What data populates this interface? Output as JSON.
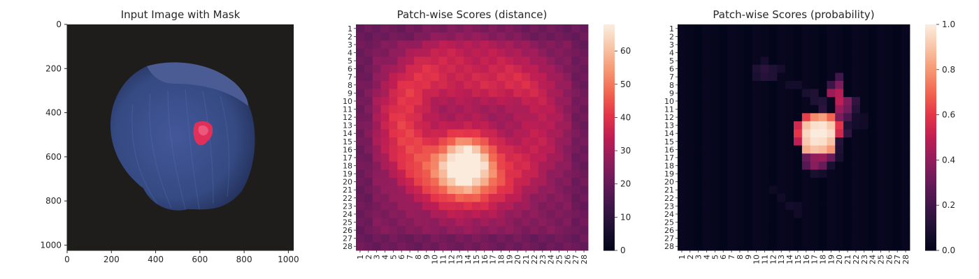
{
  "chart_data": [
    {
      "type": "image",
      "title": "Input Image with Mask",
      "xlim": [
        0,
        1024
      ],
      "ylim": [
        1024,
        0
      ],
      "xticks": [
        0,
        200,
        400,
        600,
        800,
        1000
      ],
      "yticks": [
        0,
        200,
        400,
        600,
        800,
        1000
      ],
      "content": "hazelnut photo on dark background with red defect mask overlay",
      "colors": {
        "background": "#1f1d1b",
        "nut": "#3d5088",
        "cap": "#47558f",
        "mask": "#e0305a"
      }
    },
    {
      "type": "heatmap",
      "title": "Patch-wise Scores (distance)",
      "rows": 28,
      "cols": 28,
      "row_labels": [
        "1",
        "2",
        "3",
        "4",
        "5",
        "6",
        "7",
        "8",
        "9",
        "10",
        "11",
        "12",
        "13",
        "14",
        "15",
        "16",
        "17",
        "18",
        "19",
        "20",
        "21",
        "22",
        "23",
        "24",
        "25",
        "26",
        "27",
        "28"
      ],
      "col_labels": [
        "1",
        "2",
        "3",
        "4",
        "5",
        "6",
        "7",
        "8",
        "9",
        "10",
        "11",
        "12",
        "13",
        "14",
        "15",
        "16",
        "17",
        "18",
        "19",
        "20",
        "21",
        "22",
        "23",
        "24",
        "25",
        "26",
        "27",
        "28"
      ],
      "colormap": "rocket",
      "vmin": 0,
      "vmax": 68,
      "colorbar_ticks": [
        0,
        10,
        20,
        30,
        40,
        50,
        60
      ],
      "model": {
        "background": 24,
        "ring_center": [
          12.5,
          14.5
        ],
        "ring_radius": 8.5,
        "ring_width": 2.2,
        "ring_amplitude": 16,
        "ring_arc": "left-half",
        "hotspot_center": [
          17.8,
          13.8
        ],
        "hotspot_sigma": 2.1,
        "hotspot_amplitude": 42,
        "halo_sigma": 4.5,
        "halo_amplitude": 14
      }
    },
    {
      "type": "heatmap",
      "title": "Patch-wise Scores (probability)",
      "rows": 28,
      "cols": 28,
      "row_labels": [
        "1",
        "2",
        "3",
        "4",
        "5",
        "6",
        "7",
        "8",
        "9",
        "10",
        "11",
        "12",
        "13",
        "14",
        "15",
        "16",
        "17",
        "18",
        "19",
        "20",
        "21",
        "22",
        "23",
        "24",
        "25",
        "26",
        "27",
        "28"
      ],
      "col_labels": [
        "1",
        "2",
        "3",
        "4",
        "5",
        "6",
        "7",
        "8",
        "9",
        "10",
        "11",
        "12",
        "13",
        "14",
        "15",
        "16",
        "17",
        "18",
        "19",
        "20",
        "21",
        "22",
        "23",
        "24",
        "25",
        "26",
        "27",
        "28"
      ],
      "colormap": "rocket",
      "vmin": 0.0,
      "vmax": 1.0,
      "colorbar_ticks": [
        "0.0",
        "0.2",
        "0.4",
        "0.6",
        "0.8",
        "1.0"
      ],
      "hot_cells": [
        [
          12,
          16,
          0.62
        ],
        [
          12,
          17,
          0.78
        ],
        [
          12,
          18,
          0.82
        ],
        [
          12,
          19,
          0.7
        ],
        [
          13,
          15,
          0.55
        ],
        [
          13,
          16,
          0.9
        ],
        [
          13,
          17,
          0.97
        ],
        [
          13,
          18,
          0.98
        ],
        [
          13,
          19,
          0.92
        ],
        [
          13,
          20,
          0.6
        ],
        [
          14,
          15,
          0.6
        ],
        [
          14,
          16,
          0.95
        ],
        [
          14,
          17,
          1.0
        ],
        [
          14,
          18,
          1.0
        ],
        [
          14,
          19,
          0.96
        ],
        [
          14,
          20,
          0.55
        ],
        [
          15,
          15,
          0.5
        ],
        [
          15,
          16,
          0.92
        ],
        [
          15,
          17,
          0.98
        ],
        [
          15,
          18,
          0.97
        ],
        [
          15,
          19,
          0.9
        ],
        [
          16,
          16,
          0.85
        ],
        [
          16,
          17,
          0.9
        ],
        [
          16,
          18,
          0.88
        ],
        [
          16,
          19,
          0.8
        ],
        [
          17,
          16,
          0.3
        ],
        [
          17,
          17,
          0.4
        ],
        [
          17,
          18,
          0.42
        ],
        [
          17,
          19,
          0.3
        ],
        [
          18,
          16,
          0.25
        ],
        [
          18,
          17,
          0.38
        ],
        [
          18,
          18,
          0.3
        ],
        [
          8,
          20,
          0.35
        ],
        [
          9,
          19,
          0.42
        ],
        [
          9,
          20,
          0.48
        ],
        [
          10,
          20,
          0.5
        ],
        [
          10,
          21,
          0.35
        ],
        [
          11,
          20,
          0.42
        ],
        [
          11,
          21,
          0.32
        ],
        [
          7,
          20,
          0.2
        ],
        [
          8,
          19,
          0.18
        ],
        [
          12,
          20,
          0.35
        ],
        [
          12,
          21,
          0.22
        ],
        [
          11,
          22,
          0.12
        ],
        [
          10,
          22,
          0.15
        ],
        [
          6,
          10,
          0.1
        ],
        [
          6,
          11,
          0.14
        ],
        [
          6,
          12,
          0.1
        ],
        [
          7,
          10,
          0.08
        ],
        [
          7,
          11,
          0.12
        ],
        [
          7,
          12,
          0.1
        ],
        [
          5,
          11,
          0.07
        ],
        [
          6,
          13,
          0.07
        ],
        [
          8,
          14,
          0.06
        ],
        [
          8,
          15,
          0.06
        ],
        [
          9,
          16,
          0.08
        ],
        [
          9,
          17,
          0.1
        ],
        [
          10,
          17,
          0.1
        ],
        [
          10,
          18,
          0.12
        ],
        [
          11,
          18,
          0.14
        ],
        [
          13,
          21,
          0.1
        ],
        [
          14,
          21,
          0.15
        ],
        [
          15,
          20,
          0.12
        ],
        [
          16,
          20,
          0.1
        ],
        [
          17,
          20,
          0.08
        ],
        [
          18,
          19,
          0.08
        ],
        [
          19,
          17,
          0.08
        ],
        [
          19,
          18,
          0.06
        ],
        [
          12,
          22,
          0.07
        ],
        [
          13,
          22,
          0.06
        ],
        [
          12,
          23,
          0.05
        ],
        [
          13,
          23,
          0.05
        ],
        [
          23,
          14,
          0.06
        ],
        [
          23,
          15,
          0.05
        ],
        [
          24,
          15,
          0.05
        ],
        [
          21,
          12,
          0.04
        ],
        [
          22,
          13,
          0.05
        ]
      ],
      "background_level": 0.02
    }
  ]
}
